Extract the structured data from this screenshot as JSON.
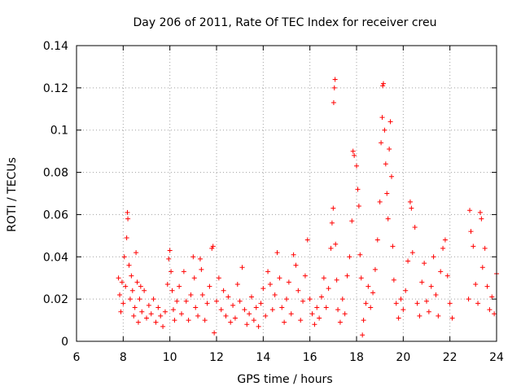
{
  "chart_data": {
    "type": "scatter",
    "title": "Day 206 of 2011, Rate Of TEC Index for receiver creu",
    "xlabel": "GPS time / hours",
    "ylabel": "ROTI / TECUs",
    "xlim": [
      6,
      24
    ],
    "ylim": [
      0,
      0.14
    ],
    "xticks": [
      6,
      8,
      10,
      12,
      14,
      16,
      18,
      20,
      22,
      24
    ],
    "yticks": [
      0,
      0.02,
      0.04,
      0.06,
      0.08,
      0.1,
      0.12,
      0.14
    ],
    "xtick_labels": [
      "6",
      "8",
      "10",
      "12",
      "14",
      "16",
      "18",
      "20",
      "22",
      "24"
    ],
    "ytick_labels": [
      "0",
      "0.02",
      "0.04",
      "0.06",
      "0.08",
      "0.1",
      "0.12",
      "0.14"
    ],
    "grid": true,
    "legend": false,
    "marker": "plus",
    "color": "#ff0000",
    "series": [
      {
        "points": [
          [
            7.8,
            0.03
          ],
          [
            7.85,
            0.022
          ],
          [
            7.9,
            0.014
          ],
          [
            7.95,
            0.028
          ],
          [
            8.0,
            0.018
          ],
          [
            8.05,
            0.04
          ],
          [
            8.1,
            0.026
          ],
          [
            8.15,
            0.049
          ],
          [
            8.18,
            0.061
          ],
          [
            8.2,
            0.058
          ],
          [
            8.25,
            0.036
          ],
          [
            8.3,
            0.02
          ],
          [
            8.35,
            0.031
          ],
          [
            8.4,
            0.024
          ],
          [
            8.45,
            0.012
          ],
          [
            8.5,
            0.016
          ],
          [
            8.55,
            0.042
          ],
          [
            8.6,
            0.028
          ],
          [
            8.65,
            0.009
          ],
          [
            8.7,
            0.02
          ],
          [
            8.75,
            0.026
          ],
          [
            8.8,
            0.014
          ],
          [
            8.9,
            0.024
          ],
          [
            9.0,
            0.011
          ],
          [
            9.1,
            0.017
          ],
          [
            9.2,
            0.013
          ],
          [
            9.3,
            0.02
          ],
          [
            9.4,
            0.009
          ],
          [
            9.5,
            0.016
          ],
          [
            9.6,
            0.012
          ],
          [
            9.7,
            0.007
          ],
          [
            9.8,
            0.014
          ],
          [
            9.9,
            0.027
          ],
          [
            9.95,
            0.039
          ],
          [
            10.0,
            0.043
          ],
          [
            10.05,
            0.033
          ],
          [
            10.1,
            0.024
          ],
          [
            10.15,
            0.015
          ],
          [
            10.2,
            0.01
          ],
          [
            10.3,
            0.019
          ],
          [
            10.4,
            0.026
          ],
          [
            10.5,
            0.013
          ],
          [
            10.6,
            0.033
          ],
          [
            10.7,
            0.019
          ],
          [
            10.8,
            0.01
          ],
          [
            10.9,
            0.022
          ],
          [
            11.0,
            0.04
          ],
          [
            11.05,
            0.03
          ],
          [
            11.1,
            0.016
          ],
          [
            11.2,
            0.012
          ],
          [
            11.3,
            0.039
          ],
          [
            11.35,
            0.034
          ],
          [
            11.4,
            0.022
          ],
          [
            11.5,
            0.01
          ],
          [
            11.6,
            0.018
          ],
          [
            11.7,
            0.026
          ],
          [
            11.8,
            0.044
          ],
          [
            11.85,
            0.045
          ],
          [
            11.9,
            0.004
          ],
          [
            12.0,
            0.019
          ],
          [
            12.1,
            0.03
          ],
          [
            12.2,
            0.015
          ],
          [
            12.3,
            0.024
          ],
          [
            12.4,
            0.012
          ],
          [
            12.5,
            0.021
          ],
          [
            12.6,
            0.009
          ],
          [
            12.7,
            0.017
          ],
          [
            12.8,
            0.011
          ],
          [
            12.9,
            0.027
          ],
          [
            13.0,
            0.019
          ],
          [
            13.1,
            0.035
          ],
          [
            13.2,
            0.015
          ],
          [
            13.3,
            0.008
          ],
          [
            13.4,
            0.013
          ],
          [
            13.5,
            0.021
          ],
          [
            13.6,
            0.01
          ],
          [
            13.7,
            0.016
          ],
          [
            13.8,
            0.007
          ],
          [
            13.9,
            0.018
          ],
          [
            14.0,
            0.025
          ],
          [
            14.1,
            0.012
          ],
          [
            14.2,
            0.033
          ],
          [
            14.3,
            0.027
          ],
          [
            14.4,
            0.015
          ],
          [
            14.5,
            0.022
          ],
          [
            14.6,
            0.042
          ],
          [
            14.7,
            0.03
          ],
          [
            14.8,
            0.016
          ],
          [
            14.9,
            0.009
          ],
          [
            15.0,
            0.02
          ],
          [
            15.1,
            0.028
          ],
          [
            15.2,
            0.013
          ],
          [
            15.3,
            0.041
          ],
          [
            15.4,
            0.036
          ],
          [
            15.5,
            0.024
          ],
          [
            15.6,
            0.01
          ],
          [
            15.7,
            0.019
          ],
          [
            15.8,
            0.031
          ],
          [
            15.9,
            0.048
          ],
          [
            16.0,
            0.02
          ],
          [
            16.1,
            0.013
          ],
          [
            16.2,
            0.008
          ],
          [
            16.3,
            0.016
          ],
          [
            16.4,
            0.011
          ],
          [
            16.5,
            0.021
          ],
          [
            16.6,
            0.03
          ],
          [
            16.7,
            0.016
          ],
          [
            16.8,
            0.025
          ],
          [
            16.9,
            0.044
          ],
          [
            16.95,
            0.056
          ],
          [
            17.0,
            0.063
          ],
          [
            17.02,
            0.113
          ],
          [
            17.05,
            0.12
          ],
          [
            17.08,
            0.124
          ],
          [
            17.1,
            0.046
          ],
          [
            17.15,
            0.029
          ],
          [
            17.2,
            0.015
          ],
          [
            17.3,
            0.009
          ],
          [
            17.4,
            0.02
          ],
          [
            17.5,
            0.013
          ],
          [
            17.6,
            0.031
          ],
          [
            17.7,
            0.04
          ],
          [
            17.8,
            0.057
          ],
          [
            17.85,
            0.09
          ],
          [
            17.9,
            0.088
          ],
          [
            18.0,
            0.083
          ],
          [
            18.05,
            0.072
          ],
          [
            18.1,
            0.064
          ],
          [
            18.15,
            0.041
          ],
          [
            18.2,
            0.03
          ],
          [
            18.25,
            0.003
          ],
          [
            18.3,
            0.01
          ],
          [
            18.4,
            0.018
          ],
          [
            18.5,
            0.026
          ],
          [
            18.6,
            0.016
          ],
          [
            18.7,
            0.023
          ],
          [
            18.8,
            0.034
          ],
          [
            18.9,
            0.048
          ],
          [
            19.0,
            0.066
          ],
          [
            19.05,
            0.094
          ],
          [
            19.1,
            0.106
          ],
          [
            19.12,
            0.121
          ],
          [
            19.15,
            0.122
          ],
          [
            19.2,
            0.1
          ],
          [
            19.25,
            0.084
          ],
          [
            19.3,
            0.07
          ],
          [
            19.35,
            0.058
          ],
          [
            19.4,
            0.091
          ],
          [
            19.45,
            0.104
          ],
          [
            19.5,
            0.078
          ],
          [
            19.55,
            0.045
          ],
          [
            19.6,
            0.029
          ],
          [
            19.7,
            0.018
          ],
          [
            19.8,
            0.011
          ],
          [
            19.9,
            0.02
          ],
          [
            20.0,
            0.015
          ],
          [
            20.1,
            0.024
          ],
          [
            20.2,
            0.038
          ],
          [
            20.3,
            0.066
          ],
          [
            20.35,
            0.063
          ],
          [
            20.4,
            0.042
          ],
          [
            20.5,
            0.054
          ],
          [
            20.6,
            0.018
          ],
          [
            20.7,
            0.012
          ],
          [
            20.8,
            0.028
          ],
          [
            20.9,
            0.037
          ],
          [
            21.0,
            0.019
          ],
          [
            21.1,
            0.014
          ],
          [
            21.2,
            0.026
          ],
          [
            21.3,
            0.04
          ],
          [
            21.4,
            0.022
          ],
          [
            21.5,
            0.012
          ],
          [
            21.6,
            0.033
          ],
          [
            21.7,
            0.044
          ],
          [
            21.8,
            0.048
          ],
          [
            21.9,
            0.031
          ],
          [
            22.0,
            0.018
          ],
          [
            22.1,
            0.011
          ],
          [
            22.8,
            0.02
          ],
          [
            22.85,
            0.062
          ],
          [
            22.9,
            0.052
          ],
          [
            23.0,
            0.045
          ],
          [
            23.1,
            0.027
          ],
          [
            23.2,
            0.018
          ],
          [
            23.3,
            0.061
          ],
          [
            23.35,
            0.058
          ],
          [
            23.4,
            0.035
          ],
          [
            23.5,
            0.044
          ],
          [
            23.6,
            0.026
          ],
          [
            23.7,
            0.015
          ],
          [
            23.8,
            0.021
          ],
          [
            23.9,
            0.013
          ],
          [
            24.0,
            0.032
          ]
        ]
      }
    ]
  }
}
